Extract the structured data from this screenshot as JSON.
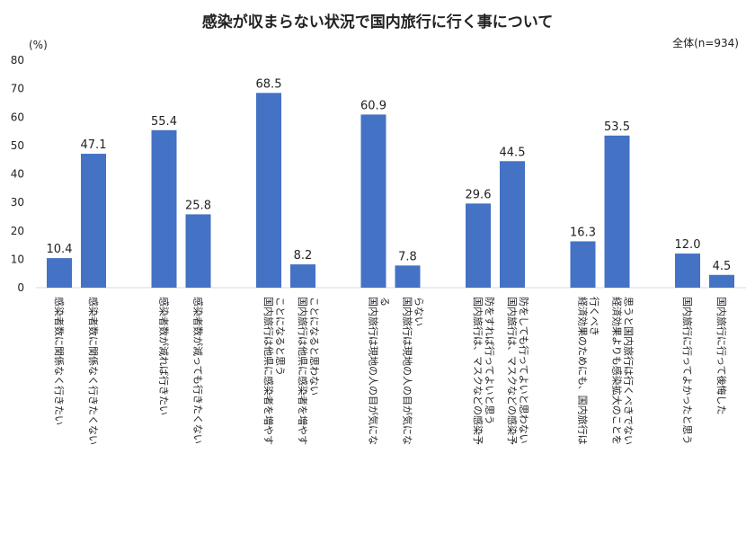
{
  "chart_data": {
    "type": "bar",
    "title": "感染が収まらない状況で国内旅行に行く事について",
    "sample_note": "全体(n=934)",
    "ylabel": "(%)",
    "ylim": [
      0,
      80
    ],
    "yticks": [
      0,
      10,
      20,
      30,
      40,
      50,
      60,
      70,
      80
    ],
    "grid": false,
    "bar_color": "#4472C4",
    "groups": [
      {
        "bars": [
          {
            "label": "感染者数に関係なく行きたい",
            "value": 10.4
          },
          {
            "label": "感染者数に関係なく行きたくない",
            "value": 47.1
          }
        ]
      },
      {
        "bars": [
          {
            "label": "感染者数が減れば行きたい",
            "value": 55.4
          },
          {
            "label": "感染者数が減っても行きたくない",
            "value": 25.8
          }
        ]
      },
      {
        "bars": [
          {
            "label": "国内旅行は他県に感染者を増やすことになると思う",
            "value": 68.5
          },
          {
            "label": "国内旅行は他県に感染者を増やすことになると思わない",
            "value": 8.2
          }
        ]
      },
      {
        "bars": [
          {
            "label": "国内旅行は現地の人の目が気になる",
            "value": 60.9
          },
          {
            "label": "国内旅行は現地の人の目が気にならない",
            "value": 7.8
          }
        ]
      },
      {
        "bars": [
          {
            "label": "国内旅行は、マスクなどの感染予防をすれば行ってよいと思う",
            "value": 29.6
          },
          {
            "label": "国内旅行は、マスクなどの感染予防をしても行ってよいと思わない",
            "value": 44.5
          }
        ]
      },
      {
        "bars": [
          {
            "label": "経済効果のためにも、国内旅行は行くべき",
            "value": 16.3
          },
          {
            "label": "経済効果よりも感染拡大のことを思うと国内旅行は行くべきでない",
            "value": 53.5
          }
        ]
      },
      {
        "bars": [
          {
            "label": "国内旅行に行ってよかったと思う",
            "value": 12.0
          },
          {
            "label": "国内旅行に行って後悔した",
            "value": 4.5
          }
        ]
      }
    ]
  }
}
